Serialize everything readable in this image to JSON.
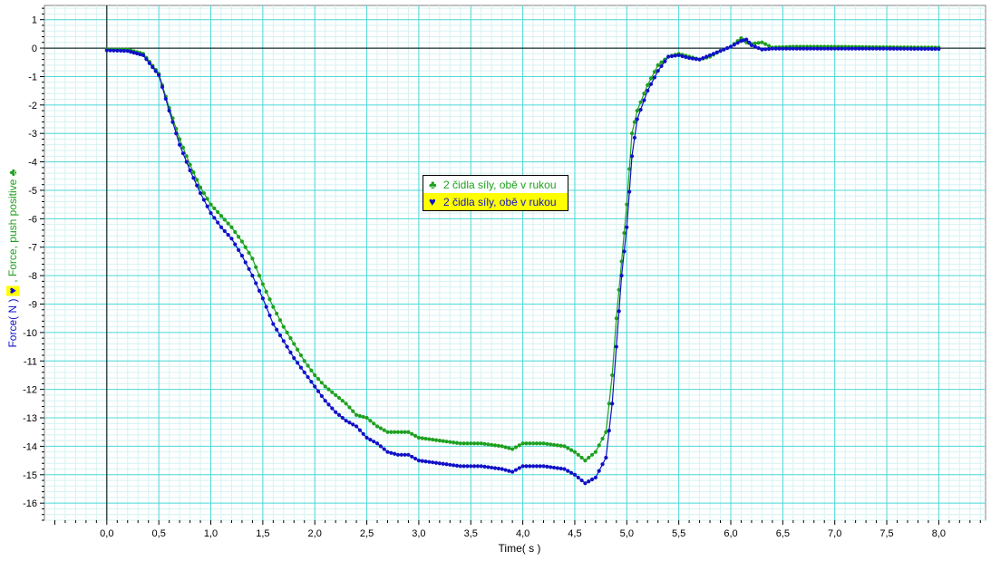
{
  "colors": {
    "grid_major": "#4fd8d8",
    "grid_minor": "#d6f2f2",
    "series_green": "#1ea01e",
    "series_blue": "#1010c8",
    "legend_highlight": "#ffff00"
  },
  "legend": {
    "items": [
      {
        "symbol": "♣",
        "label": "2 čidla síly, obě v rukou"
      },
      {
        "symbol": "♥",
        "label": "2 čidla síly, obě v rukou"
      }
    ]
  },
  "axes": {
    "y_title_prefix": "Force( N )",
    "y_title_heart": "♥",
    "y_title_suffix": ", Force, push positive",
    "y_title_club": "♣"
  },
  "chart_data": {
    "type": "line",
    "xlabel": "Time( s )",
    "ylabel": "Force( N ) ♥ , Force, push positive ♣",
    "xlim": [
      -0.6,
      8.45
    ],
    "ylim": [
      -16.6,
      1.5
    ],
    "xticks": [
      0,
      0.5,
      1,
      1.5,
      2,
      2.5,
      3,
      3.5,
      4,
      4.5,
      5,
      5.5,
      6,
      6.5,
      7,
      7.5,
      8
    ],
    "xtick_labels": [
      "0,0",
      "0,5",
      "1,0",
      "1,5",
      "2,0",
      "2,5",
      "3,0",
      "3,5",
      "4,0",
      "4,5",
      "5,0",
      "5,5",
      "6,0",
      "6,5",
      "7,0",
      "7,5",
      "8,0"
    ],
    "yticks": [
      1,
      0,
      -1,
      -2,
      -3,
      -4,
      -5,
      -6,
      -7,
      -8,
      -9,
      -10,
      -11,
      -12,
      -13,
      -14,
      -15,
      -16
    ],
    "ytick_labels": [
      "1",
      "0",
      "-1",
      "-2",
      "-3",
      "-4",
      "-5",
      "-6",
      "-7",
      "-8",
      "-9",
      "-10",
      "-11",
      "-12",
      "-13",
      "-14",
      "-15",
      "-16"
    ],
    "grid": true,
    "legend_position": "center",
    "series": [
      {
        "name": "2 čidla síly, obě v rukou",
        "marker": "♣",
        "color": "#1ea01e",
        "points": [
          [
            0,
            -0.05
          ],
          [
            0.2,
            -0.05
          ],
          [
            0.35,
            -0.2
          ],
          [
            0.5,
            -0.9
          ],
          [
            0.6,
            -2.1
          ],
          [
            0.7,
            -3.2
          ],
          [
            0.8,
            -4.1
          ],
          [
            0.9,
            -4.9
          ],
          [
            1.0,
            -5.5
          ],
          [
            1.1,
            -5.9
          ],
          [
            1.2,
            -6.3
          ],
          [
            1.3,
            -6.8
          ],
          [
            1.4,
            -7.4
          ],
          [
            1.5,
            -8.3
          ],
          [
            1.6,
            -9.1
          ],
          [
            1.7,
            -9.8
          ],
          [
            1.8,
            -10.4
          ],
          [
            1.9,
            -11.0
          ],
          [
            2.0,
            -11.5
          ],
          [
            2.1,
            -11.9
          ],
          [
            2.2,
            -12.2
          ],
          [
            2.3,
            -12.5
          ],
          [
            2.4,
            -12.9
          ],
          [
            2.5,
            -13.0
          ],
          [
            2.6,
            -13.3
          ],
          [
            2.7,
            -13.5
          ],
          [
            2.8,
            -13.5
          ],
          [
            2.9,
            -13.5
          ],
          [
            3.0,
            -13.7
          ],
          [
            3.2,
            -13.8
          ],
          [
            3.4,
            -13.9
          ],
          [
            3.6,
            -13.9
          ],
          [
            3.8,
            -14.0
          ],
          [
            3.9,
            -14.1
          ],
          [
            4.0,
            -13.9
          ],
          [
            4.2,
            -13.9
          ],
          [
            4.4,
            -14.0
          ],
          [
            4.5,
            -14.2
          ],
          [
            4.6,
            -14.5
          ],
          [
            4.7,
            -14.2
          ],
          [
            4.8,
            -13.5
          ],
          [
            4.86,
            -11.5
          ],
          [
            4.9,
            -9.5
          ],
          [
            4.95,
            -7.5
          ],
          [
            5.0,
            -5.5
          ],
          [
            5.05,
            -3.0
          ],
          [
            5.1,
            -2.2
          ],
          [
            5.2,
            -1.3
          ],
          [
            5.3,
            -0.6
          ],
          [
            5.4,
            -0.3
          ],
          [
            5.5,
            -0.2
          ],
          [
            5.6,
            -0.3
          ],
          [
            5.7,
            -0.4
          ],
          [
            5.8,
            -0.3
          ],
          [
            5.9,
            -0.1
          ],
          [
            6.0,
            0.05
          ],
          [
            6.1,
            0.35
          ],
          [
            6.15,
            0.2
          ],
          [
            6.2,
            0.15
          ],
          [
            6.3,
            0.2
          ],
          [
            6.4,
            0.02
          ],
          [
            6.6,
            0.05
          ],
          [
            7.0,
            0.05
          ],
          [
            7.5,
            0.03
          ],
          [
            8.0,
            0.02
          ]
        ]
      },
      {
        "name": "2 čidla síly, obě v rukou",
        "marker": "♥",
        "color": "#1010c8",
        "points": [
          [
            0,
            -0.08
          ],
          [
            0.2,
            -0.1
          ],
          [
            0.35,
            -0.25
          ],
          [
            0.5,
            -0.95
          ],
          [
            0.6,
            -2.2
          ],
          [
            0.7,
            -3.4
          ],
          [
            0.8,
            -4.3
          ],
          [
            0.9,
            -5.1
          ],
          [
            1.0,
            -5.8
          ],
          [
            1.1,
            -6.3
          ],
          [
            1.2,
            -6.7
          ],
          [
            1.3,
            -7.3
          ],
          [
            1.4,
            -8.0
          ],
          [
            1.5,
            -8.8
          ],
          [
            1.6,
            -9.7
          ],
          [
            1.7,
            -10.3
          ],
          [
            1.8,
            -10.9
          ],
          [
            1.9,
            -11.4
          ],
          [
            2.0,
            -11.9
          ],
          [
            2.1,
            -12.4
          ],
          [
            2.2,
            -12.8
          ],
          [
            2.3,
            -13.1
          ],
          [
            2.4,
            -13.3
          ],
          [
            2.5,
            -13.7
          ],
          [
            2.6,
            -13.9
          ],
          [
            2.7,
            -14.2
          ],
          [
            2.8,
            -14.3
          ],
          [
            2.9,
            -14.3
          ],
          [
            3.0,
            -14.5
          ],
          [
            3.2,
            -14.6
          ],
          [
            3.4,
            -14.7
          ],
          [
            3.6,
            -14.7
          ],
          [
            3.8,
            -14.8
          ],
          [
            3.9,
            -14.9
          ],
          [
            4.0,
            -14.7
          ],
          [
            4.2,
            -14.7
          ],
          [
            4.4,
            -14.8
          ],
          [
            4.5,
            -15.0
          ],
          [
            4.6,
            -15.3
          ],
          [
            4.7,
            -15.1
          ],
          [
            4.8,
            -14.4
          ],
          [
            4.86,
            -12.5
          ],
          [
            4.9,
            -10.5
          ],
          [
            4.95,
            -8.0
          ],
          [
            5.0,
            -6.3
          ],
          [
            5.05,
            -3.8
          ],
          [
            5.1,
            -2.5
          ],
          [
            5.2,
            -1.5
          ],
          [
            5.3,
            -0.8
          ],
          [
            5.4,
            -0.3
          ],
          [
            5.5,
            -0.25
          ],
          [
            5.6,
            -0.35
          ],
          [
            5.7,
            -0.4
          ],
          [
            5.8,
            -0.25
          ],
          [
            5.9,
            -0.1
          ],
          [
            6.0,
            0.05
          ],
          [
            6.1,
            0.25
          ],
          [
            6.15,
            0.3
          ],
          [
            6.2,
            0.1
          ],
          [
            6.3,
            -0.05
          ],
          [
            6.4,
            -0.02
          ],
          [
            6.6,
            -0.02
          ],
          [
            7.0,
            -0.02
          ],
          [
            7.5,
            -0.02
          ],
          [
            8.0,
            -0.03
          ]
        ]
      }
    ]
  }
}
